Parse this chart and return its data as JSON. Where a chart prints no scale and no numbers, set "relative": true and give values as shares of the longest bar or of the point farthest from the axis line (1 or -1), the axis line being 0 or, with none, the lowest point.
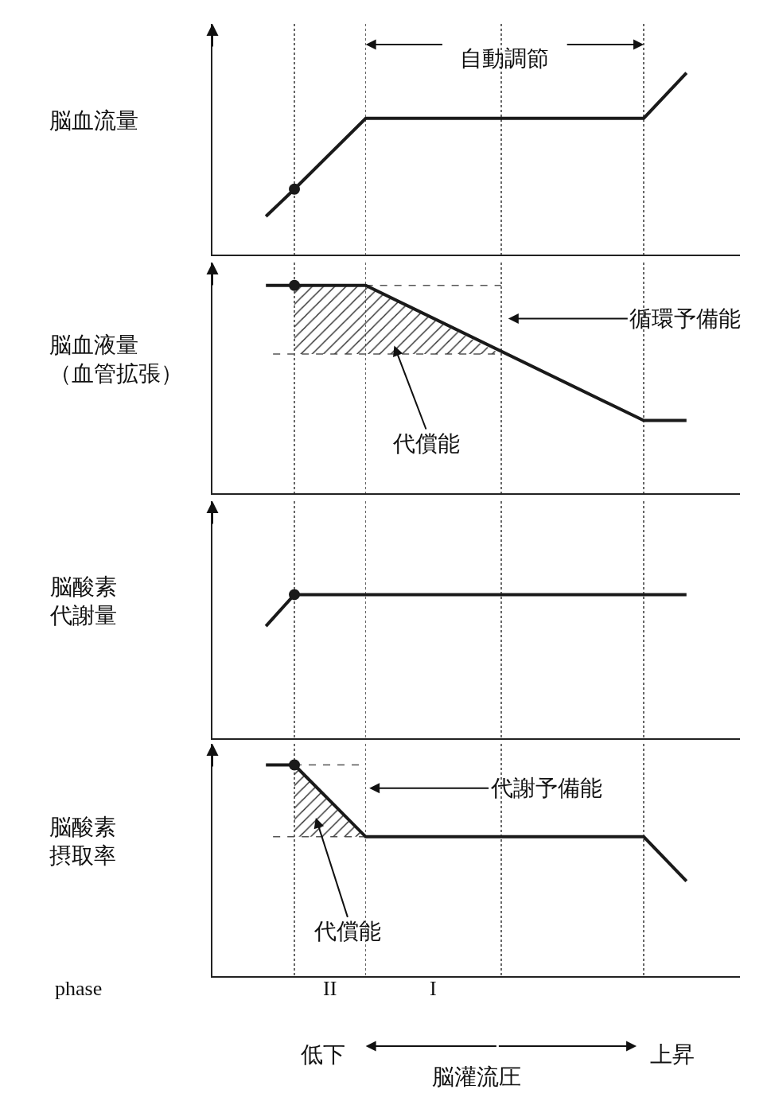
{
  "chart_data": [
    {
      "type": "line",
      "relative": true,
      "ylabel": "脳血流量",
      "tick_labels": false,
      "marker": "none",
      "line_style": "solid",
      "grid": "x",
      "categories": [
        null,
        null,
        null,
        null,
        null,
        null,
        null,
        null,
        null,
        null,
        null,
        null,
        null,
        null,
        null,
        null,
        null,
        null,
        null,
        null,
        null,
        null,
        null,
        null,
        null,
        null,
        null,
        null,
        null,
        null,
        null,
        null,
        null,
        null,
        null,
        null,
        null,
        null,
        null,
        null,
        null,
        null,
        null,
        null,
        null,
        null,
        null,
        null,
        null,
        null,
        null,
        null,
        null,
        null,
        null,
        null,
        null,
        null,
        null,
        null,
        null,
        null,
        null,
        null,
        null,
        null,
        null,
        null,
        null,
        null,
        null,
        null,
        null,
        null
      ],
      "series": [
        {
          "color": "#1a1a1a",
          "values": [
            null,
            null,
            null,
            null,
            null,
            null,
            null,
            0.21,
            null,
            null,
            null,
            0.36,
            null,
            null,
            null,
            null,
            null,
            null,
            null,
            null,
            null,
            0.75,
            null,
            null,
            null,
            null,
            null,
            null,
            null,
            null,
            null,
            null,
            null,
            null,
            null,
            null,
            null,
            null,
            null,
            null,
            null,
            null,
            null,
            null,
            null,
            null,
            null,
            null,
            null,
            null,
            null,
            null,
            null,
            null,
            null,
            null,
            null,
            null,
            null,
            null,
            0.75,
            null,
            null,
            null,
            null,
            null,
            1,
            null,
            null,
            null,
            null,
            null,
            null,
            null
          ]
        }
      ],
      "annotations": [
        "自動調節"
      ]
    },
    {
      "type": "line",
      "relative": true,
      "ylabel": "脳血液量（血管拡張）",
      "tick_labels": false,
      "marker": "none",
      "line_style": "solid",
      "grid": "x",
      "categories": [
        null,
        null,
        null,
        null,
        null,
        null,
        null,
        null,
        null,
        null,
        null,
        null,
        null,
        null,
        null,
        null,
        null,
        null,
        null,
        null,
        null,
        null,
        null,
        null,
        null,
        null,
        null,
        null,
        null,
        null,
        null,
        null,
        null,
        null,
        null,
        null,
        null,
        null,
        null,
        null,
        null,
        null,
        null,
        null,
        null,
        null,
        null,
        null,
        null,
        null,
        null,
        null,
        null,
        null,
        null,
        null,
        null,
        null,
        null,
        null,
        null,
        null,
        null,
        null,
        null,
        null,
        null,
        null,
        null,
        null,
        null,
        null,
        null,
        null
      ],
      "series": [
        {
          "line_style": "dashed",
          "color": "#555555",
          "values": [
            null,
            null,
            null,
            null,
            null,
            null,
            null,
            null,
            0.67,
            null,
            null,
            0.67,
            null,
            null,
            null,
            null,
            null,
            null,
            null,
            null,
            null,
            null,
            null,
            null,
            null,
            null,
            null,
            null,
            null,
            null,
            null,
            null,
            null,
            null,
            null,
            null,
            null,
            null,
            null,
            null,
            0.67,
            null,
            null,
            null,
            null,
            null,
            null,
            null,
            null,
            null,
            null,
            null,
            null,
            null,
            null,
            null,
            null,
            null,
            null,
            null,
            null,
            null,
            null,
            null,
            null,
            null,
            null,
            null,
            null,
            null,
            null,
            null,
            null,
            null
          ]
        },
        {
          "type": "area",
          "color": "#333333",
          "values": [
            null,
            null,
            null,
            null,
            null,
            null,
            null,
            null,
            null,
            null,
            null,
            1,
            null,
            null,
            null,
            null,
            null,
            null,
            null,
            null,
            null,
            1,
            null,
            null,
            null,
            null,
            null,
            null,
            null,
            null,
            null,
            null,
            null,
            null,
            null,
            null,
            null,
            null,
            null,
            null,
            0.67,
            null,
            null,
            null,
            null,
            null,
            null,
            null,
            null,
            null,
            null,
            null,
            null,
            null,
            null,
            null,
            null,
            null,
            null,
            null,
            null,
            null,
            null,
            null,
            null,
            null,
            null,
            null,
            null,
            null,
            null,
            null,
            null,
            null
          ]
        },
        {
          "line_style": "dashed",
          "color": "#555555",
          "values": [
            null,
            null,
            null,
            null,
            null,
            null,
            null,
            null,
            null,
            null,
            null,
            null,
            null,
            null,
            null,
            null,
            null,
            null,
            null,
            null,
            null,
            1,
            null,
            null,
            null,
            null,
            null,
            null,
            null,
            null,
            null,
            null,
            null,
            null,
            null,
            null,
            null,
            null,
            null,
            null,
            1,
            null,
            null,
            null,
            null,
            null,
            null,
            null,
            null,
            null,
            null,
            null,
            null,
            null,
            null,
            null,
            null,
            null,
            null,
            null,
            null,
            null,
            null,
            null,
            null,
            null,
            null,
            null,
            null,
            null,
            null,
            null,
            null,
            null
          ]
        },
        {
          "color": "#1a1a1a",
          "values": [
            null,
            null,
            null,
            null,
            null,
            null,
            null,
            1,
            null,
            null,
            null,
            null,
            null,
            null,
            null,
            null,
            null,
            null,
            null,
            null,
            null,
            1,
            null,
            null,
            null,
            null,
            null,
            null,
            null,
            null,
            null,
            null,
            null,
            null,
            null,
            null,
            null,
            null,
            null,
            null,
            null,
            null,
            null,
            null,
            null,
            null,
            null,
            null,
            null,
            null,
            null,
            null,
            null,
            null,
            null,
            null,
            null,
            null,
            null,
            null,
            0.35,
            null,
            null,
            null,
            null,
            null,
            0.35,
            null,
            null,
            null,
            null,
            null,
            null,
            null
          ]
        },
        {
          "type": "scatter",
          "marker": "circle",
          "color": "#1a1a1a",
          "values": [
            null,
            null,
            null,
            null,
            null,
            null,
            null,
            null,
            null,
            null,
            null,
            1,
            null,
            null,
            null,
            null,
            null,
            null,
            null,
            null,
            null,
            null,
            null,
            null,
            null,
            null,
            null,
            null,
            null,
            null,
            null,
            null,
            null,
            null,
            null,
            null,
            null,
            null,
            null,
            null,
            null,
            null,
            null,
            null,
            null,
            null,
            null,
            null,
            null,
            null,
            null,
            null,
            null,
            null,
            null,
            null,
            null,
            null,
            null,
            null,
            null,
            null,
            null,
            null,
            null,
            null,
            null,
            null,
            null,
            null,
            null,
            null,
            null,
            null
          ]
        }
      ],
      "annotations": [
        "循環予備能",
        "代償能"
      ]
    },
    {
      "type": "line",
      "relative": true,
      "ylabel": "脳酸素代謝量",
      "tick_labels": false,
      "marker": "none",
      "line_style": "solid",
      "grid": "x",
      "categories": [
        null,
        null,
        null,
        null,
        null,
        null,
        null,
        null,
        null,
        null,
        null,
        null,
        null,
        null,
        null,
        null,
        null,
        null,
        null,
        null,
        null,
        null,
        null,
        null,
        null,
        null,
        null,
        null,
        null,
        null,
        null,
        null,
        null,
        null,
        null,
        null,
        null,
        null,
        null,
        null,
        null,
        null,
        null,
        null,
        null,
        null,
        null,
        null,
        null,
        null,
        null,
        null,
        null,
        null,
        null,
        null,
        null,
        null,
        null,
        null,
        null,
        null,
        null,
        null,
        null,
        null,
        null,
        null,
        null,
        null,
        null,
        null,
        null,
        null
      ],
      "series": [
        {
          "color": "#1a1a1a",
          "values": [
            null,
            null,
            null,
            null,
            null,
            null,
            null,
            0.78,
            null,
            null,
            null,
            1,
            null,
            null,
            null,
            null,
            null,
            null,
            null,
            null,
            null,
            null,
            null,
            null,
            null,
            null,
            null,
            null,
            null,
            null,
            null,
            null,
            null,
            null,
            null,
            null,
            null,
            null,
            null,
            null,
            null,
            null,
            null,
            null,
            null,
            null,
            null,
            null,
            null,
            null,
            null,
            null,
            null,
            null,
            null,
            null,
            null,
            null,
            null,
            null,
            null,
            null,
            null,
            null,
            null,
            null,
            1,
            null,
            null,
            null,
            null,
            null,
            null,
            null
          ]
        }
      ]
    },
    {
      "type": "line",
      "relative": true,
      "ylabel": "脳酸素摂取率",
      "xlabel": "脳灌流圧",
      "tick_labels": "x",
      "marker": "none",
      "line_style": "solid",
      "grid": "x",
      "categories": [
        null,
        null,
        null,
        null,
        null,
        null,
        null,
        null,
        null,
        null,
        null,
        null,
        null,
        null,
        null,
        "低下",
        null,
        null,
        null,
        null,
        null,
        null,
        null,
        null,
        null,
        null,
        null,
        null,
        null,
        null,
        null,
        null,
        null,
        null,
        null,
        null,
        null,
        null,
        null,
        null,
        null,
        null,
        null,
        null,
        null,
        null,
        null,
        null,
        null,
        null,
        null,
        null,
        null,
        null,
        null,
        null,
        null,
        null,
        null,
        null,
        null,
        null,
        null,
        null,
        "上昇",
        null,
        null,
        null,
        null,
        null,
        null,
        null,
        null,
        null
      ],
      "series": [
        {
          "line_style": "dashed",
          "color": "#555555",
          "values": [
            null,
            null,
            null,
            null,
            null,
            null,
            null,
            null,
            0.66,
            null,
            null,
            0.66,
            null,
            null,
            null,
            null,
            null,
            null,
            null,
            null,
            null,
            0.66,
            null,
            null,
            null,
            null,
            null,
            null,
            null,
            null,
            null,
            null,
            null,
            null,
            null,
            null,
            null,
            null,
            null,
            null,
            null,
            null,
            null,
            null,
            null,
            null,
            null,
            null,
            null,
            null,
            null,
            null,
            null,
            null,
            null,
            null,
            null,
            null,
            null,
            null,
            null,
            null,
            null,
            null,
            null,
            null,
            null,
            null,
            null,
            null,
            null,
            null,
            null,
            null
          ]
        },
        {
          "type": "area",
          "color": "#333333",
          "values": [
            null,
            null,
            null,
            null,
            null,
            null,
            null,
            null,
            null,
            null,
            null,
            1,
            null,
            null,
            null,
            null,
            null,
            null,
            null,
            null,
            null,
            0.66,
            null,
            null,
            null,
            null,
            null,
            null,
            null,
            null,
            null,
            null,
            null,
            null,
            null,
            null,
            null,
            null,
            null,
            null,
            null,
            null,
            null,
            null,
            null,
            null,
            null,
            null,
            null,
            null,
            null,
            null,
            null,
            null,
            null,
            null,
            null,
            null,
            null,
            null,
            null,
            null,
            null,
            null,
            null,
            null,
            null,
            null,
            null,
            null,
            null,
            null,
            null,
            null
          ]
        },
        {
          "line_style": "dashed",
          "color": "#555555",
          "values": [
            null,
            null,
            null,
            null,
            null,
            null,
            null,
            null,
            null,
            null,
            null,
            1,
            null,
            null,
            null,
            null,
            null,
            null,
            null,
            null,
            null,
            1,
            null,
            null,
            null,
            null,
            null,
            null,
            null,
            null,
            null,
            null,
            null,
            null,
            null,
            null,
            null,
            null,
            null,
            null,
            null,
            null,
            null,
            null,
            null,
            null,
            null,
            null,
            null,
            null,
            null,
            null,
            null,
            null,
            null,
            null,
            null,
            null,
            null,
            null,
            null,
            null,
            null,
            null,
            null,
            null,
            null,
            null,
            null,
            null,
            null,
            null,
            null,
            null
          ]
        },
        {
          "color": "#1a1a1a",
          "values": [
            null,
            null,
            null,
            null,
            null,
            null,
            null,
            1,
            null,
            null,
            null,
            1,
            null,
            null,
            null,
            null,
            null,
            null,
            null,
            null,
            null,
            0.66,
            null,
            null,
            null,
            null,
            null,
            null,
            null,
            null,
            null,
            null,
            null,
            null,
            null,
            null,
            null,
            null,
            null,
            null,
            null,
            null,
            null,
            null,
            null,
            null,
            null,
            null,
            null,
            null,
            null,
            null,
            null,
            null,
            null,
            null,
            null,
            null,
            null,
            null,
            0.66,
            null,
            null,
            null,
            null,
            null,
            0.45,
            null,
            null,
            null,
            null,
            null,
            null,
            null
          ]
        },
        {
          "type": "scatter",
          "marker": "circle",
          "color": "#1a1a1a",
          "values": [
            null,
            null,
            null,
            null,
            null,
            null,
            null,
            null,
            null,
            null,
            null,
            1,
            null,
            null,
            null,
            null,
            null,
            null,
            null,
            null,
            null,
            null,
            null,
            null,
            null,
            null,
            null,
            null,
            null,
            null,
            null,
            null,
            null,
            null,
            null,
            null,
            null,
            null,
            null,
            null,
            null,
            null,
            null,
            null,
            null,
            null,
            null,
            null,
            null,
            null,
            null,
            null,
            null,
            null,
            null,
            null,
            null,
            null,
            null,
            null,
            null,
            null,
            null,
            null,
            null,
            null,
            null,
            null,
            null,
            null,
            null,
            null,
            null,
            null
          ]
        }
      ],
      "annotations": [
        "代謝予備能",
        "代償能",
        "phase",
        "II",
        "I"
      ]
    }
  ]
}
